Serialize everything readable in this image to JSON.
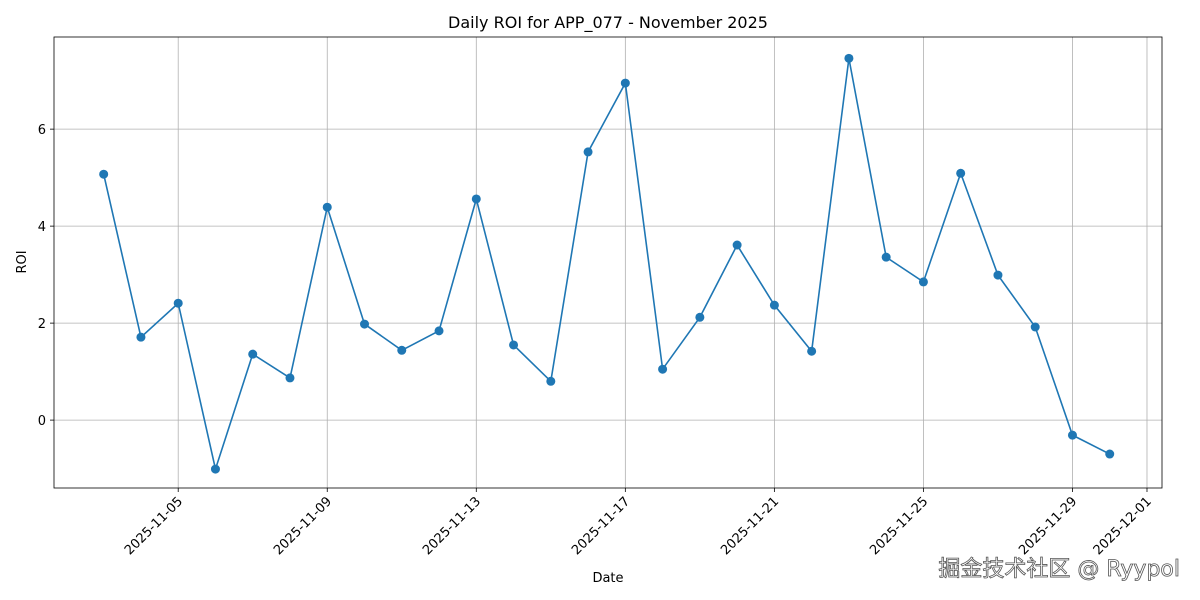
{
  "chart_data": {
    "type": "line",
    "title": "Daily ROI for APP_077 - November 2025",
    "x_label": "Date",
    "y_label": "ROI",
    "x": [
      "2025-11-03",
      "2025-11-04",
      "2025-11-05",
      "2025-11-06",
      "2025-11-07",
      "2025-11-08",
      "2025-11-09",
      "2025-11-10",
      "2025-11-11",
      "2025-11-12",
      "2025-11-13",
      "2025-11-14",
      "2025-11-15",
      "2025-11-16",
      "2025-11-17",
      "2025-11-18",
      "2025-11-19",
      "2025-11-20",
      "2025-11-21",
      "2025-11-22",
      "2025-11-23",
      "2025-11-24",
      "2025-11-25",
      "2025-11-26",
      "2025-11-27",
      "2025-11-28",
      "2025-11-29",
      "2025-11-30"
    ],
    "series": [
      {
        "name": "ROI",
        "color": "#1f77b4",
        "values": [
          5.07,
          1.71,
          2.41,
          -1.01,
          1.36,
          0.87,
          4.39,
          1.98,
          1.44,
          1.84,
          4.56,
          1.55,
          0.8,
          5.53,
          6.95,
          1.05,
          2.12,
          3.61,
          2.37,
          1.42,
          7.46,
          3.36,
          2.85,
          5.09,
          2.99,
          1.92,
          -0.31,
          -0.7
        ]
      }
    ],
    "xlim": [
      "2025-11-01T16:00:00Z",
      "2025-12-01T09:40:00Z"
    ],
    "xticks": [
      "2025-11-05",
      "2025-11-09",
      "2025-11-13",
      "2025-11-17",
      "2025-11-21",
      "2025-11-25",
      "2025-11-29",
      "2025-12-01"
    ],
    "ylim": [
      -1.4,
      7.9
    ],
    "yticks": [
      0,
      2,
      4,
      6
    ],
    "grid": true,
    "watermark": "掘金技术社区 @ Ryypol"
  }
}
